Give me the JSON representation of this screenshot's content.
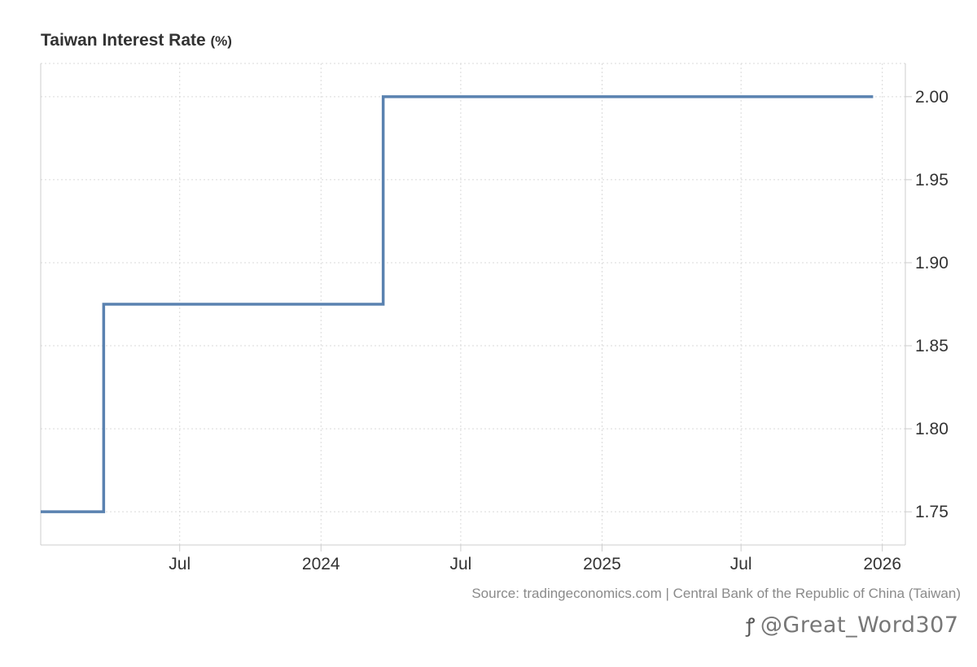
{
  "header": {
    "title": "Taiwan Interest Rate",
    "unit": "(%)"
  },
  "chart_data": {
    "type": "line",
    "title": "Taiwan Interest Rate",
    "ylabel": "",
    "xlabel": "",
    "step": true,
    "color": "#5a82b0",
    "grid": true,
    "ylim": [
      1.73,
      2.02
    ],
    "xlim": [
      "2023-01-01",
      "2026-01-31"
    ],
    "y_ticks": [
      1.75,
      1.8,
      1.85,
      1.9,
      1.95,
      2.0
    ],
    "y_tick_labels": [
      "1.75",
      "1.80",
      "1.85",
      "1.90",
      "1.95",
      "2.00"
    ],
    "x_ticks": [
      "2023-07-01",
      "2024-01-01",
      "2024-07-01",
      "2025-01-01",
      "2025-07-01",
      "2026-01-01"
    ],
    "x_tick_labels": [
      "Jul",
      "2024",
      "Jul",
      "2025",
      "Jul",
      "2026"
    ],
    "series": [
      {
        "points": [
          {
            "x": "2023-01-01",
            "y": 1.75
          },
          {
            "x": "2023-03-24",
            "y": 1.875
          },
          {
            "x": "2024-03-22",
            "y": 2.0
          },
          {
            "x": "2025-12-20",
            "y": 2.0
          }
        ]
      }
    ]
  },
  "footer": {
    "source": "Source: tradingeconomics.com | Central Bank of the Republic of China (Taiwan)",
    "watermark": "@Great_Word307"
  }
}
